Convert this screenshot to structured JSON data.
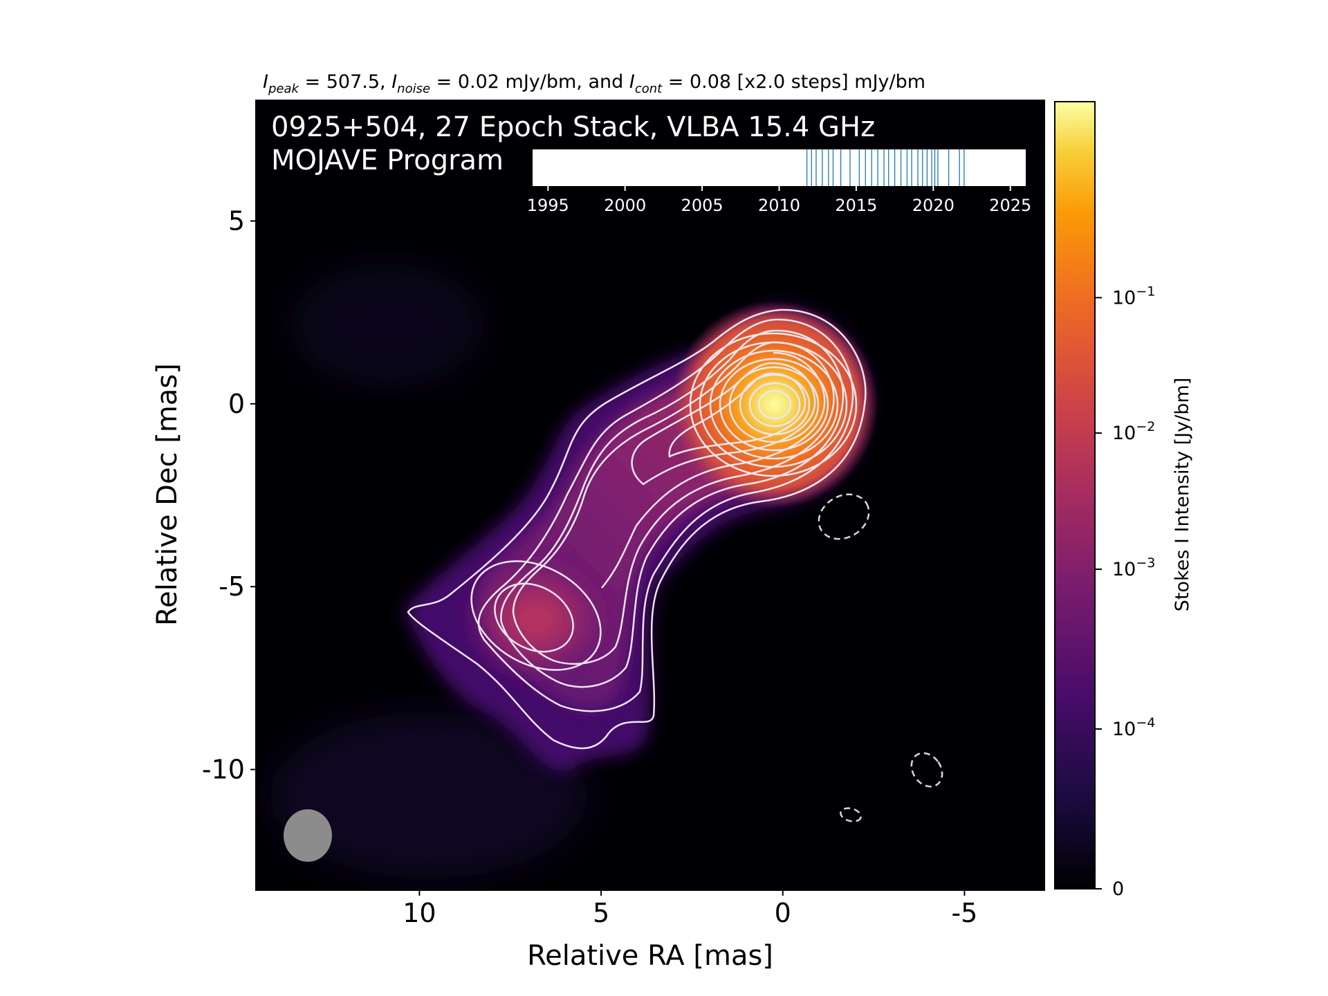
{
  "chart_data": {
    "type": "heatmap",
    "title": {
      "prefix": "I",
      "peak_sub": "peak",
      "peak_text": " = 507.5, ",
      "noise_sub": "noise",
      "noise_text": " = 0.02 mJy/bm, and ",
      "cont_sub": "cont",
      "cont_text": " = 0.08 [x2.0 steps] mJy/bm"
    },
    "annotation_line1": "0925+504, 27 Epoch Stack, VLBA 15.4 GHz",
    "annotation_line2": "MOJAVE Program",
    "xlabel": "Relative RA [mas]",
    "ylabel": "Relative Dec [mas]",
    "x_ticks": [
      10,
      5,
      0,
      -5
    ],
    "y_ticks": [
      5,
      0,
      -5,
      -10
    ],
    "xlim": [
      14.5,
      -7.2
    ],
    "ylim": [
      -13.3,
      8.3
    ],
    "colorbar": {
      "label": "Stokes I Intensity [Jy/bm]",
      "scale": "log",
      "ticks": [
        {
          "base": "10",
          "exp": "−1",
          "value": 0.1
        },
        {
          "base": "10",
          "exp": "−2",
          "value": 0.01
        },
        {
          "base": "10",
          "exp": "−3",
          "value": 0.001
        },
        {
          "base": "10",
          "exp": "−4",
          "value": 0.0001
        },
        {
          "base": "0",
          "exp": "",
          "value": 0
        }
      ],
      "colormap": "inferno"
    },
    "epoch_timeline": {
      "range": [
        1994,
        2026
      ],
      "ticks": [
        1995,
        2000,
        2005,
        2010,
        2015,
        2020,
        2025
      ],
      "epochs": [
        2011.8,
        2012.1,
        2012.4,
        2012.8,
        2013.2,
        2013.5,
        2014.0,
        2014.6,
        2015.2,
        2015.6,
        2016.0,
        2016.4,
        2016.8,
        2017.1,
        2017.5,
        2017.9,
        2018.3,
        2018.6,
        2019.0,
        2019.3,
        2019.6,
        2019.9,
        2020.1,
        2020.3,
        2021.0,
        2021.7,
        2022.0
      ],
      "tick_color": "#1f77b4"
    },
    "peak_position": [
      0.0,
      0.0
    ],
    "secondary_component": [
      6.9,
      -6.1
    ],
    "beam_color": "#8c8c8c",
    "contour_color": "#eee6f2"
  }
}
